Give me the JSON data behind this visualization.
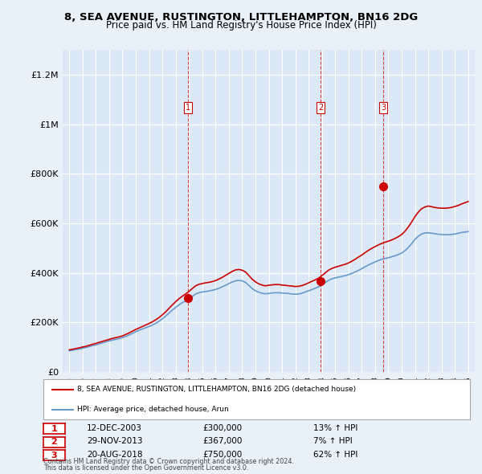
{
  "title": "8, SEA AVENUE, RUSTINGTON, LITTLEHAMPTON, BN16 2DG",
  "subtitle": "Price paid vs. HM Land Registry's House Price Index (HPI)",
  "ylabel_ticks": [
    0,
    200000,
    400000,
    600000,
    800000,
    1000000,
    1200000
  ],
  "ylabel_labels": [
    "£0",
    "£200K",
    "£400K",
    "£600K",
    "£800K",
    "£1M",
    "£1.2M"
  ],
  "ylim": [
    0,
    1300000
  ],
  "xlim_start": 1994.5,
  "xlim_end": 2025.5,
  "background_color": "#e8f0f8",
  "plot_bg_color": "#dce8f5",
  "grid_color": "#ffffff",
  "red_color": "#cc0000",
  "blue_color": "#6699cc",
  "sale_dates": [
    2003.95,
    2013.91,
    2018.64
  ],
  "sale_prices": [
    300000,
    367000,
    750000
  ],
  "sale_labels": [
    "1",
    "2",
    "3"
  ],
  "sale_date_strs": [
    "12-DEC-2003",
    "29-NOV-2013",
    "20-AUG-2018"
  ],
  "sale_price_strs": [
    "£300,000",
    "£367,000",
    "£750,000"
  ],
  "sale_hpi_strs": [
    "13% ↑ HPI",
    "7% ↑ HPI",
    "62% ↑ HPI"
  ],
  "legend_red_label": "8, SEA AVENUE, RUSTINGTON, LITTLEHAMPTON, BN16 2DG (detached house)",
  "legend_blue_label": "HPI: Average price, detached house, Arun",
  "footer_line1": "Contains HM Land Registry data © Crown copyright and database right 2024.",
  "footer_line2": "This data is licensed under the Open Government Licence v3.0.",
  "hpi_years": [
    1995,
    1995.25,
    1995.5,
    1995.75,
    1996,
    1996.25,
    1996.5,
    1996.75,
    1997,
    1997.25,
    1997.5,
    1997.75,
    1998,
    1998.25,
    1998.5,
    1998.75,
    1999,
    1999.25,
    1999.5,
    1999.75,
    2000,
    2000.25,
    2000.5,
    2000.75,
    2001,
    2001.25,
    2001.5,
    2001.75,
    2002,
    2002.25,
    2002.5,
    2002.75,
    2003,
    2003.25,
    2003.5,
    2003.75,
    2004,
    2004.25,
    2004.5,
    2004.75,
    2005,
    2005.25,
    2005.5,
    2005.75,
    2006,
    2006.25,
    2006.5,
    2006.75,
    2007,
    2007.25,
    2007.5,
    2007.75,
    2008,
    2008.25,
    2008.5,
    2008.75,
    2009,
    2009.25,
    2009.5,
    2009.75,
    2010,
    2010.25,
    2010.5,
    2010.75,
    2011,
    2011.25,
    2011.5,
    2011.75,
    2012,
    2012.25,
    2012.5,
    2012.75,
    2013,
    2013.25,
    2013.5,
    2013.75,
    2014,
    2014.25,
    2014.5,
    2014.75,
    2015,
    2015.25,
    2015.5,
    2015.75,
    2016,
    2016.25,
    2016.5,
    2016.75,
    2017,
    2017.25,
    2017.5,
    2017.75,
    2018,
    2018.25,
    2018.5,
    2018.75,
    2019,
    2019.25,
    2019.5,
    2019.75,
    2020,
    2020.25,
    2020.5,
    2020.75,
    2021,
    2021.25,
    2021.5,
    2021.75,
    2022,
    2022.25,
    2022.5,
    2022.75,
    2023,
    2023.25,
    2023.5,
    2023.75,
    2024,
    2024.25,
    2024.5,
    2024.75,
    2025
  ],
  "hpi_blue": [
    86000,
    88000,
    91000,
    93000,
    96000,
    99000,
    103000,
    107000,
    110000,
    114000,
    118000,
    122000,
    126000,
    129000,
    132000,
    135000,
    139000,
    144000,
    150000,
    156000,
    163000,
    169000,
    174000,
    179000,
    184000,
    190000,
    197000,
    205000,
    215000,
    226000,
    238000,
    250000,
    261000,
    271000,
    280000,
    287000,
    295000,
    305000,
    315000,
    320000,
    323000,
    325000,
    327000,
    330000,
    333000,
    338000,
    344000,
    350000,
    357000,
    363000,
    368000,
    370000,
    368000,
    362000,
    350000,
    337000,
    328000,
    322000,
    318000,
    316000,
    317000,
    319000,
    320000,
    320000,
    319000,
    318000,
    317000,
    315000,
    314000,
    315000,
    318000,
    323000,
    328000,
    333000,
    338000,
    344000,
    352000,
    361000,
    370000,
    376000,
    380000,
    383000,
    386000,
    389000,
    393000,
    398000,
    404000,
    410000,
    417000,
    425000,
    432000,
    438000,
    444000,
    450000,
    455000,
    458000,
    461000,
    465000,
    469000,
    474000,
    480000,
    490000,
    502000,
    518000,
    535000,
    548000,
    557000,
    561000,
    562000,
    560000,
    558000,
    556000,
    555000,
    554000,
    554000,
    555000,
    557000,
    560000,
    563000,
    565000,
    567000
  ],
  "hpi_red": [
    90000,
    92000,
    95000,
    98000,
    101000,
    104000,
    108000,
    112000,
    116000,
    120000,
    124000,
    128000,
    132000,
    136000,
    139000,
    142000,
    146000,
    152000,
    158000,
    165000,
    172000,
    178000,
    184000,
    190000,
    196000,
    203000,
    211000,
    220000,
    231000,
    243000,
    257000,
    271000,
    284000,
    296000,
    306000,
    315000,
    325000,
    337000,
    348000,
    354000,
    357000,
    360000,
    362000,
    365000,
    369000,
    375000,
    382000,
    390000,
    398000,
    406000,
    412000,
    414000,
    411000,
    404000,
    390000,
    375000,
    364000,
    356000,
    351000,
    348000,
    350000,
    352000,
    353000,
    353000,
    351000,
    350000,
    348000,
    347000,
    345000,
    346000,
    349000,
    354000,
    360000,
    366000,
    372000,
    379000,
    389000,
    400000,
    411000,
    418000,
    423000,
    427000,
    431000,
    435000,
    440000,
    447000,
    455000,
    464000,
    472000,
    482000,
    491000,
    499000,
    506000,
    513000,
    519000,
    524000,
    528000,
    533000,
    539000,
    546000,
    555000,
    568000,
    585000,
    605000,
    627000,
    645000,
    659000,
    666000,
    670000,
    667000,
    664000,
    662000,
    661000,
    661000,
    662000,
    664000,
    668000,
    672000,
    678000,
    683000,
    688000
  ]
}
